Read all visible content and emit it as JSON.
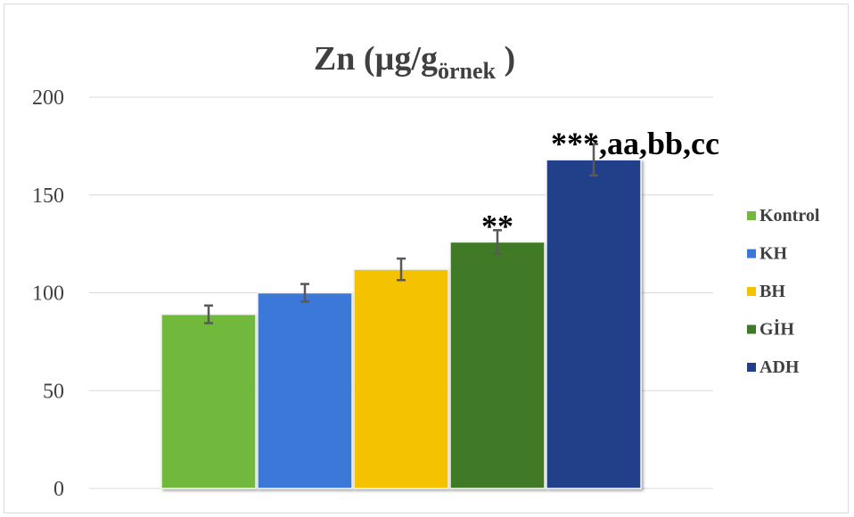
{
  "chart_data": {
    "type": "bar",
    "title": "Zn (µg/g",
    "title_subscript": "örnek",
    "title_suffix": " )",
    "categories": [
      "Kontrol",
      "KH",
      "BH",
      "GİH",
      "ADH"
    ],
    "values": [
      89,
      100,
      112,
      126,
      168
    ],
    "errors": [
      4.5,
      4.5,
      5.5,
      6,
      8
    ],
    "annotations": [
      "",
      "",
      "",
      "**",
      "***,aa,bb,cc"
    ],
    "colors": [
      "#70b93e",
      "#3a78d8",
      "#f5c200",
      "#3f7a28",
      "#223f8a"
    ],
    "ylim": [
      0,
      200
    ],
    "yticks": [
      0,
      50,
      100,
      150,
      200
    ],
    "grid": true,
    "legend_position": "right",
    "xlabel": "",
    "ylabel": ""
  }
}
